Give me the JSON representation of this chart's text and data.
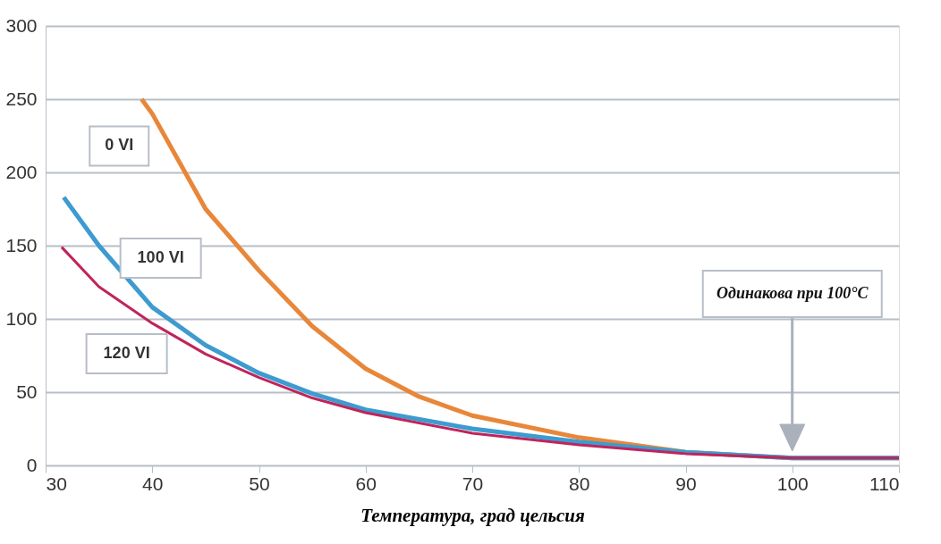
{
  "chart_data": {
    "type": "line",
    "xlabel": "Температура, град цельсия",
    "xlim": [
      30,
      110
    ],
    "xticks": [
      30,
      40,
      50,
      60,
      70,
      80,
      90,
      100,
      110
    ],
    "ylim": [
      0,
      300
    ],
    "yticks": [
      0,
      50,
      100,
      150,
      200,
      250,
      300
    ],
    "grid": "y",
    "marker": "none",
    "line_style": "solid",
    "series": [
      {
        "name": "0 VI",
        "color": "#e8873a",
        "x": [
          39,
          40,
          45,
          50,
          55,
          60,
          65,
          70,
          80,
          90,
          100,
          110
        ],
        "values": [
          250,
          240,
          175,
          133,
          95,
          66,
          47,
          34,
          19,
          9,
          5,
          5
        ]
      },
      {
        "name": "100 VI",
        "color": "#3d9bd0",
        "x": [
          31.7,
          35,
          40,
          45,
          50,
          55,
          60,
          70,
          80,
          90,
          100,
          110
        ],
        "values": [
          183,
          150,
          108,
          82,
          63,
          49,
          38,
          25,
          16,
          9,
          5,
          5
        ]
      },
      {
        "name": "120 VI",
        "color": "#c0245a",
        "x": [
          31.5,
          35,
          40,
          45,
          50,
          55,
          60,
          70,
          80,
          90,
          100,
          110
        ],
        "values": [
          149,
          122,
          97,
          76,
          60,
          46,
          36,
          22,
          14,
          8,
          5,
          5
        ]
      }
    ],
    "annotations": [
      "Одинакова при 100°C"
    ]
  }
}
